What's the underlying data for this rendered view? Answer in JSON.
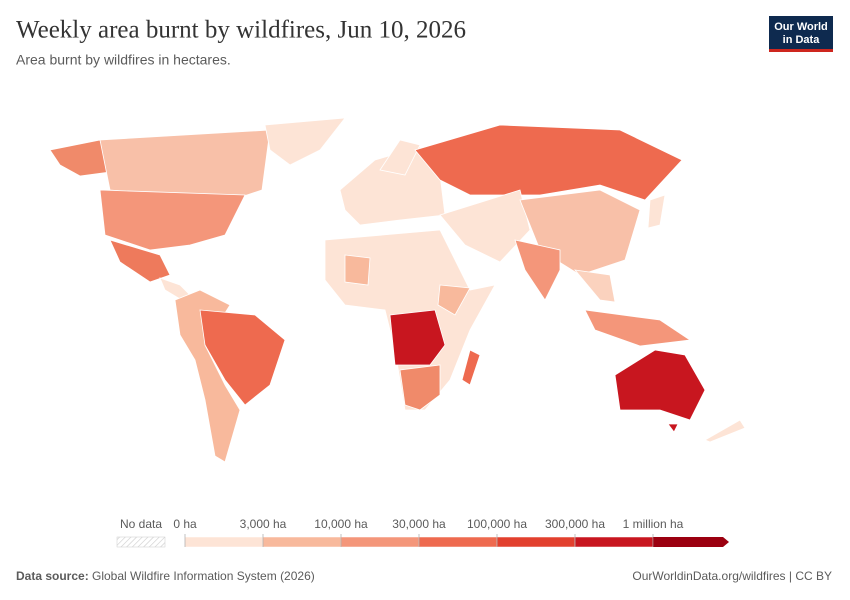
{
  "header": {
    "title": "Weekly area burnt by wildfires, Jun 10, 2026",
    "subtitle": "Area burnt by wildfires in hectares.",
    "logo": [
      "Our World",
      "in Data"
    ]
  },
  "legend": {
    "no_data": "No data",
    "bins": [
      {
        "label": "0 ha",
        "color": "#fde4d6"
      },
      {
        "label": "3,000 ha",
        "color": "#f8b99c"
      },
      {
        "label": "10,000 ha",
        "color": "#f4967a"
      },
      {
        "label": "30,000 ha",
        "color": "#ee6a4f"
      },
      {
        "label": "100,000 ha",
        "color": "#e2402e"
      },
      {
        "label": "300,000 ha",
        "color": "#c8161f"
      },
      {
        "label": "1 million ha",
        "color": "#9b0010"
      }
    ]
  },
  "footer": {
    "source_label": "Data source:",
    "source": "Global Wildfire Information System (2026)",
    "link": "OurWorldinData.org/wildfires | CC BY"
  }
}
